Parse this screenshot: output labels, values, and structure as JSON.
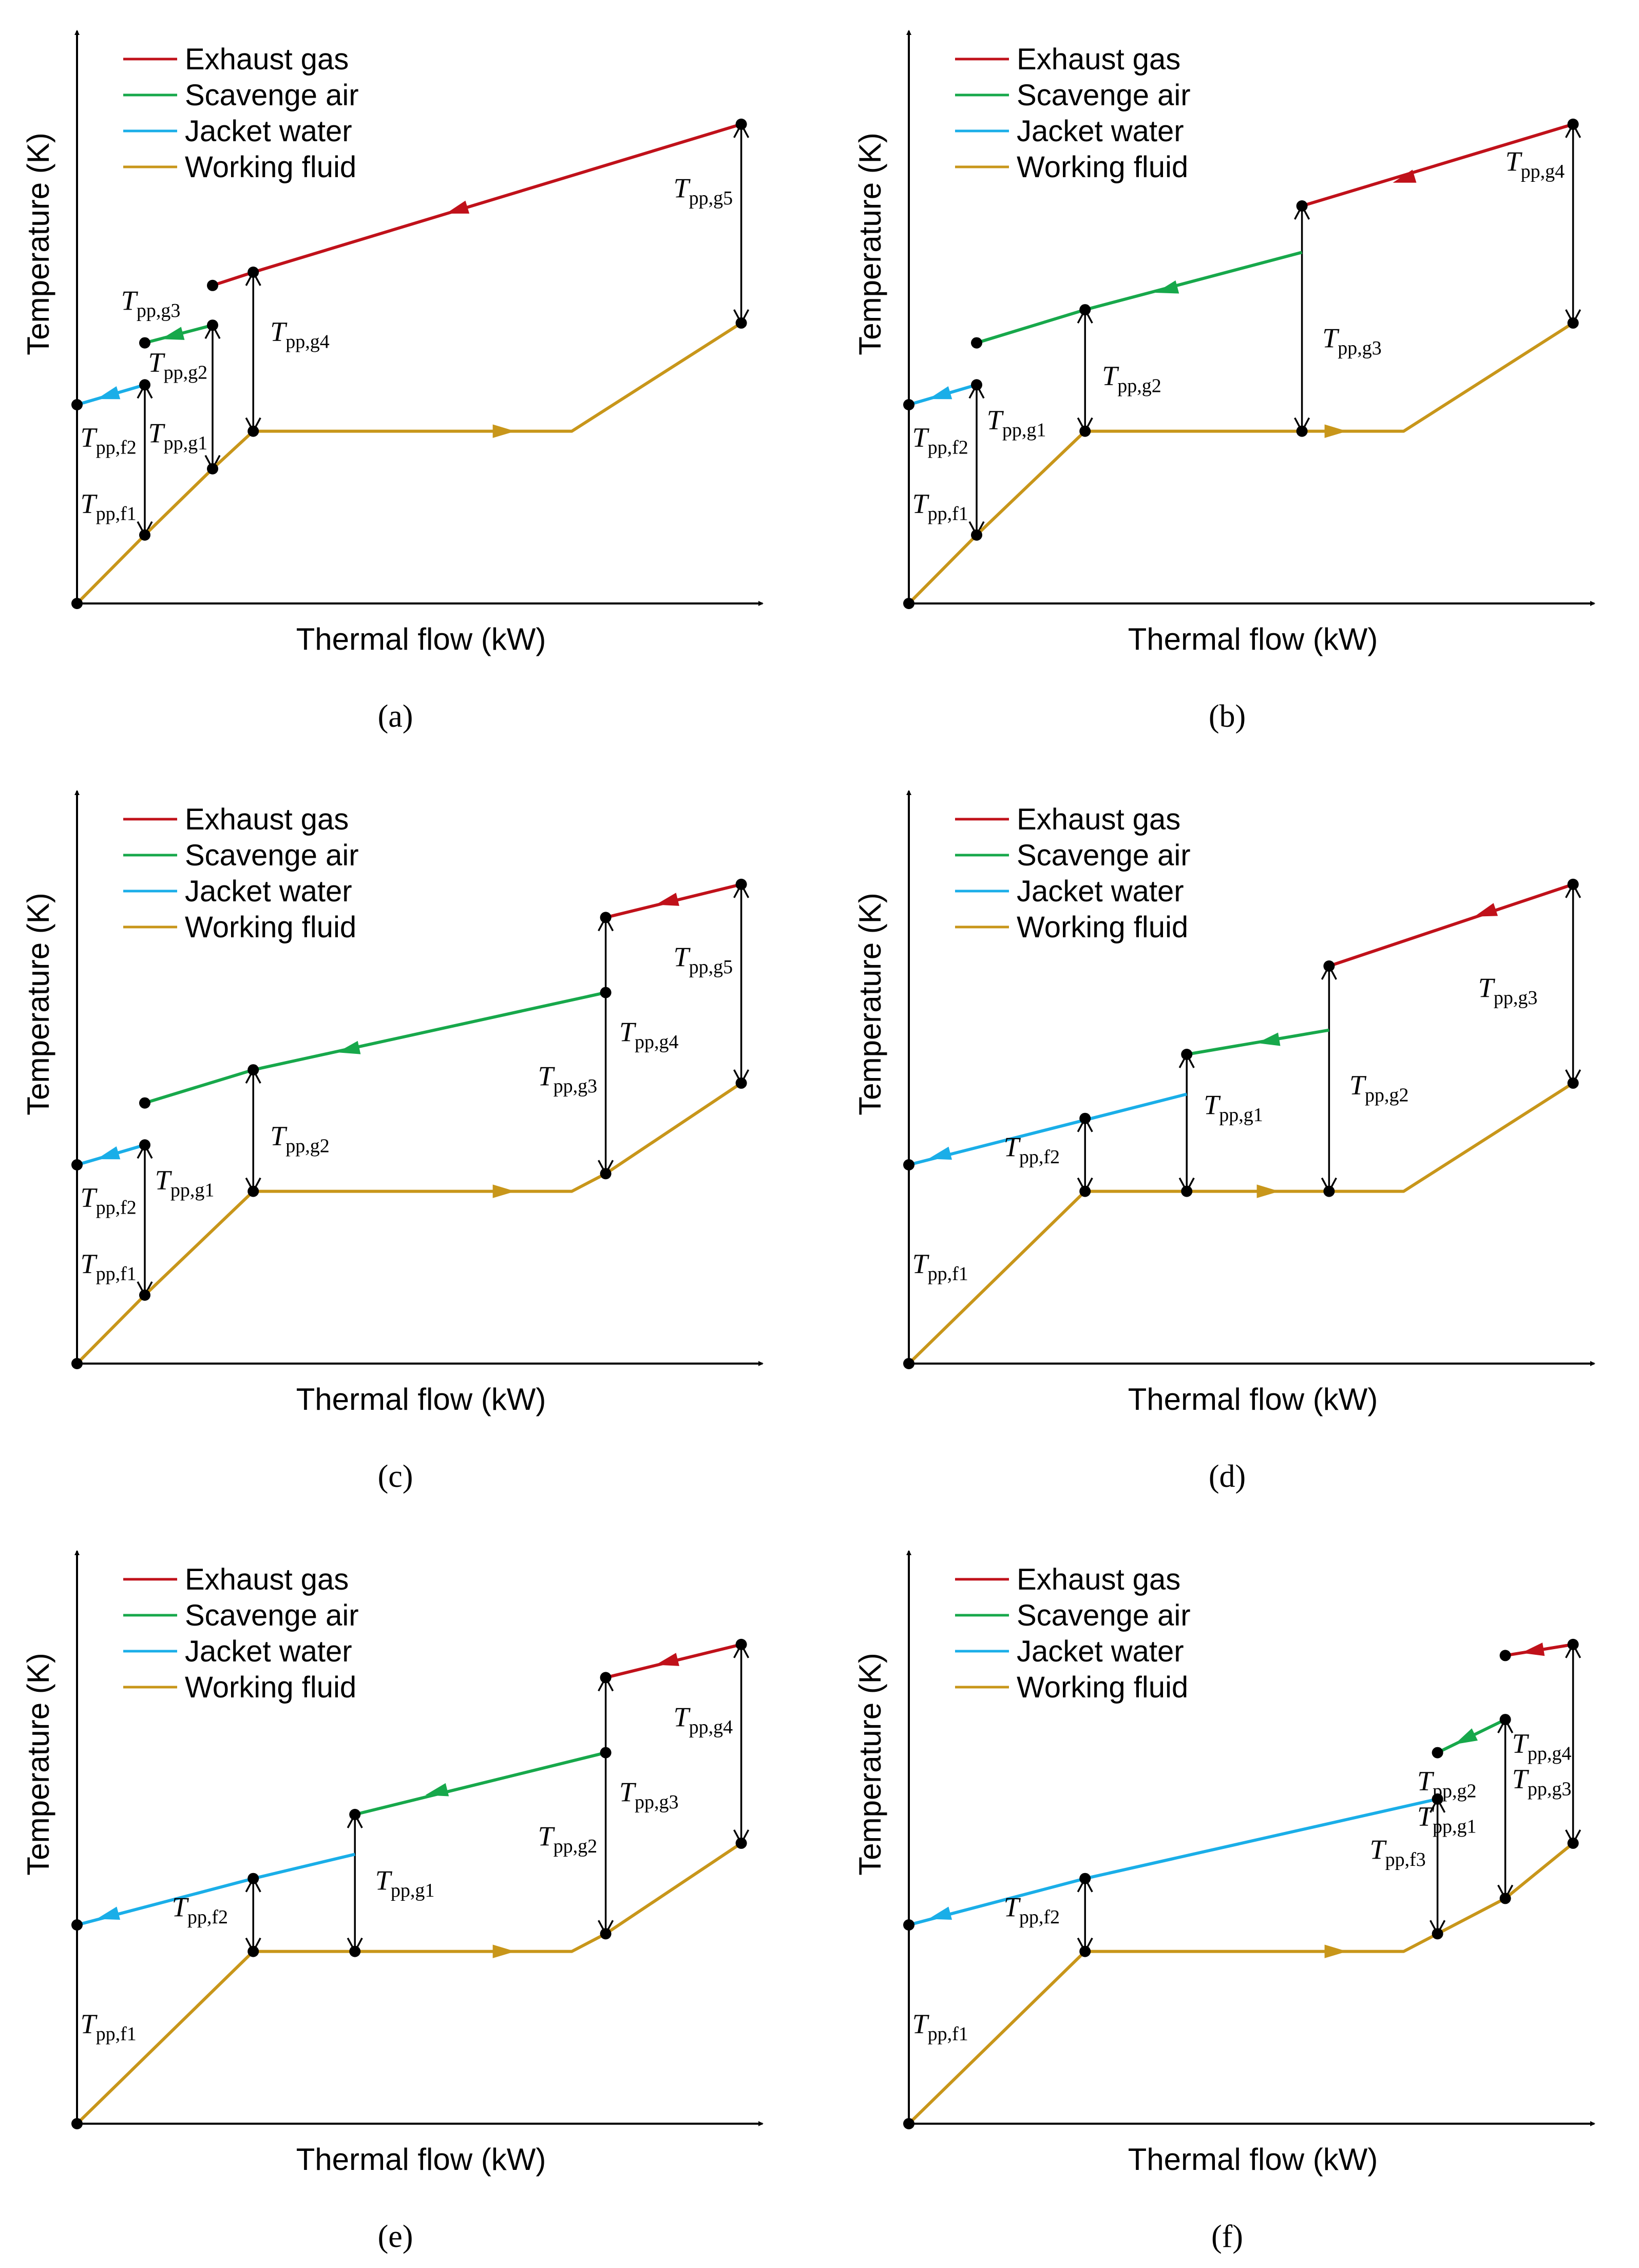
{
  "colors": {
    "exhaust": "#c0111a",
    "scavenge": "#17a84b",
    "jacket": "#1aaee8",
    "working": "#c8961a",
    "axis": "#000000"
  },
  "legend": [
    "Exhaust gas",
    "Scavenge air",
    "Jacket water",
    "Working fluid"
  ],
  "axes": {
    "x_label": "Thermal flow (kW)",
    "y_label": "Temperature (K)"
  },
  "panels": [
    {
      "caption": "(a)",
      "working": [
        [
          0.0,
          0.0
        ],
        [
          1.0,
          1.55
        ],
        [
          2.0,
          3.05
        ],
        [
          2.6,
          3.9
        ],
        [
          7.3,
          3.9
        ],
        [
          9.8,
          6.35
        ]
      ],
      "working_arrows": [
        [
          6.3,
          3.9,
          1
        ]
      ],
      "hot": [
        {
          "stream": "jacket",
          "pts": [
            [
              0.0,
              4.5
            ],
            [
              1.0,
              4.95
            ]
          ],
          "arrow": [
            0.45,
            4.7,
            -1
          ]
        },
        {
          "stream": "scavenge",
          "pts": [
            [
              1.0,
              5.9
            ],
            [
              2.0,
              6.3
            ]
          ],
          "arrow": [
            1.4,
            6.05,
            -1
          ]
        },
        {
          "stream": "exhaust",
          "pts": [
            [
              2.0,
              7.2
            ],
            [
              2.6,
              7.5
            ],
            [
              9.8,
              10.85
            ]
          ],
          "arrow": [
            5.6,
            8.9,
            -1
          ]
        }
      ],
      "dots": [
        [
          0,
          0
        ],
        [
          1,
          1.55
        ],
        [
          2,
          3.05
        ],
        [
          2.6,
          3.9
        ],
        [
          9.8,
          6.35
        ],
        [
          0,
          4.5
        ],
        [
          1,
          4.95
        ],
        [
          1,
          5.9
        ],
        [
          2,
          6.3
        ],
        [
          2,
          7.2
        ],
        [
          2.6,
          7.5
        ],
        [
          9.8,
          10.85
        ]
      ],
      "vlines": [
        [
          1.0,
          1.55,
          4.95
        ],
        [
          2.0,
          3.05,
          6.3
        ],
        [
          2.6,
          3.9,
          7.5
        ],
        [
          9.8,
          6.35,
          10.85
        ]
      ],
      "labels": [
        {
          "t": "T",
          "s": "pp,g5",
          "x": 8.8,
          "y": 9.2
        },
        {
          "t": "T",
          "s": "pp,g3",
          "x": 0.65,
          "y": 6.65
        },
        {
          "t": "T",
          "s": "pp,g2",
          "x": 1.05,
          "y": 5.25
        },
        {
          "t": "T",
          "s": "pp,g4",
          "x": 2.85,
          "y": 5.95
        },
        {
          "t": "T",
          "s": "pp,f2",
          "x": 0.05,
          "y": 3.55
        },
        {
          "t": "T",
          "s": "pp,g1",
          "x": 1.05,
          "y": 3.65
        },
        {
          "t": "T",
          "s": "pp,f1",
          "x": 0.05,
          "y": 2.05
        }
      ]
    },
    {
      "caption": "(b)",
      "working": [
        [
          0.0,
          0.0
        ],
        [
          1.0,
          1.55
        ],
        [
          2.6,
          3.9
        ],
        [
          7.3,
          3.9
        ],
        [
          9.8,
          6.35
        ]
      ],
      "working_arrows": [
        [
          6.3,
          3.9,
          1
        ]
      ],
      "hot": [
        {
          "stream": "jacket",
          "pts": [
            [
              0.0,
              4.5
            ],
            [
              1.0,
              4.95
            ]
          ],
          "arrow": [
            0.45,
            4.7,
            -1
          ]
        },
        {
          "stream": "scavenge",
          "pts": [
            [
              1.0,
              5.9
            ],
            [
              2.6,
              6.65
            ],
            [
              5.8,
              7.95
            ]
          ],
          "arrow": [
            3.8,
            7.1,
            -1
          ]
        },
        {
          "stream": "exhaust",
          "pts": [
            [
              5.8,
              9.0
            ],
            [
              9.8,
              10.85
            ]
          ],
          "arrow": [
            7.3,
            9.6,
            -1
          ]
        }
      ],
      "dots": [
        [
          0,
          0
        ],
        [
          1,
          1.55
        ],
        [
          2.6,
          3.9
        ],
        [
          5.8,
          3.9
        ],
        [
          9.8,
          6.35
        ],
        [
          0,
          4.5
        ],
        [
          1,
          4.95
        ],
        [
          1,
          5.9
        ],
        [
          2.6,
          6.65
        ],
        [
          5.8,
          9.0
        ],
        [
          9.8,
          10.85
        ]
      ],
      "vlines": [
        [
          1.0,
          1.55,
          4.95
        ],
        [
          2.6,
          3.9,
          6.65
        ],
        [
          5.8,
          3.9,
          9.0
        ],
        [
          9.8,
          6.35,
          10.85
        ]
      ],
      "labels": [
        {
          "t": "T",
          "s": "pp,g4",
          "x": 8.8,
          "y": 9.8
        },
        {
          "t": "T",
          "s": "pp,g3",
          "x": 6.1,
          "y": 5.8
        },
        {
          "t": "T",
          "s": "pp,g2",
          "x": 2.85,
          "y": 4.95
        },
        {
          "t": "T",
          "s": "pp,f2",
          "x": 0.05,
          "y": 3.55
        },
        {
          "t": "T",
          "s": "pp,g1",
          "x": 1.15,
          "y": 3.95
        },
        {
          "t": "T",
          "s": "pp,f1",
          "x": 0.05,
          "y": 2.05
        }
      ]
    },
    {
      "caption": "(c)",
      "working": [
        [
          0.0,
          0.0
        ],
        [
          1.0,
          1.55
        ],
        [
          2.6,
          3.9
        ],
        [
          7.3,
          3.9
        ],
        [
          7.8,
          4.3
        ],
        [
          9.8,
          6.35
        ]
      ],
      "working_arrows": [
        [
          6.3,
          3.9,
          1
        ]
      ],
      "hot": [
        {
          "stream": "jacket",
          "pts": [
            [
              0.0,
              4.5
            ],
            [
              1.0,
              4.95
            ]
          ],
          "arrow": [
            0.45,
            4.7,
            -1
          ]
        },
        {
          "stream": "scavenge",
          "pts": [
            [
              1.0,
              5.9
            ],
            [
              2.6,
              6.65
            ],
            [
              7.8,
              8.4
            ]
          ],
          "arrow": [
            4.0,
            7.1,
            -1
          ]
        },
        {
          "stream": "exhaust",
          "pts": [
            [
              7.8,
              10.1
            ],
            [
              9.8,
              10.85
            ]
          ],
          "arrow": [
            8.7,
            10.45,
            -1
          ]
        }
      ],
      "dots": [
        [
          0,
          0
        ],
        [
          1,
          1.55
        ],
        [
          2.6,
          3.9
        ],
        [
          7.8,
          4.3
        ],
        [
          9.8,
          6.35
        ],
        [
          0,
          4.5
        ],
        [
          1,
          4.95
        ],
        [
          1,
          5.9
        ],
        [
          2.6,
          6.65
        ],
        [
          7.8,
          8.4
        ],
        [
          7.8,
          10.1
        ],
        [
          9.8,
          10.85
        ]
      ],
      "vlines": [
        [
          1.0,
          1.55,
          4.95
        ],
        [
          2.6,
          3.9,
          6.65
        ],
        [
          7.8,
          4.3,
          10.1
        ],
        [
          9.8,
          6.35,
          10.85
        ]
      ],
      "labels": [
        {
          "t": "T",
          "s": "pp,g5",
          "x": 8.8,
          "y": 9.0
        },
        {
          "t": "T",
          "s": "pp,g4",
          "x": 8.0,
          "y": 7.3
        },
        {
          "t": "T",
          "s": "pp,g3",
          "x": 6.8,
          "y": 6.3
        },
        {
          "t": "T",
          "s": "pp,g2",
          "x": 2.85,
          "y": 4.95
        },
        {
          "t": "T",
          "s": "pp,f2",
          "x": 0.05,
          "y": 3.55
        },
        {
          "t": "T",
          "s": "pp,g1",
          "x": 1.15,
          "y": 3.95
        },
        {
          "t": "T",
          "s": "pp,f1",
          "x": 0.05,
          "y": 2.05
        }
      ]
    },
    {
      "caption": "(d)",
      "working": [
        [
          0.0,
          0.0
        ],
        [
          2.6,
          3.9
        ],
        [
          7.3,
          3.9
        ],
        [
          9.8,
          6.35
        ]
      ],
      "working_arrows": [
        [
          5.3,
          3.9,
          1
        ]
      ],
      "hot": [
        {
          "stream": "jacket",
          "pts": [
            [
              0.0,
              4.5
            ],
            [
              4.1,
              6.1
            ]
          ],
          "arrow": [
            0.45,
            4.7,
            -1
          ]
        },
        {
          "stream": "scavenge",
          "pts": [
            [
              4.1,
              7.0
            ],
            [
              6.2,
              7.55
            ]
          ],
          "arrow": [
            5.3,
            7.3,
            -1
          ]
        },
        {
          "stream": "exhaust",
          "pts": [
            [
              6.2,
              9.0
            ],
            [
              9.8,
              10.85
            ]
          ],
          "arrow": [
            8.5,
            10.2,
            -1
          ]
        }
      ],
      "dots": [
        [
          0,
          0
        ],
        [
          2.6,
          3.9
        ],
        [
          4.1,
          3.9
        ],
        [
          6.2,
          3.9
        ],
        [
          9.8,
          6.35
        ],
        [
          0,
          4.5
        ],
        [
          2.6,
          5.55
        ],
        [
          4.1,
          7.0
        ],
        [
          6.2,
          9.0
        ],
        [
          9.8,
          10.85
        ]
      ],
      "vlines": [
        [
          2.6,
          3.9,
          5.55
        ],
        [
          4.1,
          3.9,
          7.0
        ],
        [
          6.2,
          3.9,
          9.0
        ],
        [
          9.8,
          6.35,
          10.85
        ]
      ],
      "labels": [
        {
          "t": "T",
          "s": "pp,g3",
          "x": 8.4,
          "y": 8.3
        },
        {
          "t": "T",
          "s": "pp,g2",
          "x": 6.5,
          "y": 6.1
        },
        {
          "t": "T",
          "s": "pp,g1",
          "x": 4.35,
          "y": 5.65
        },
        {
          "t": "T",
          "s": "pp,f2",
          "x": 1.4,
          "y": 4.7
        },
        {
          "t": "T",
          "s": "pp,f1",
          "x": 0.05,
          "y": 2.05
        }
      ]
    },
    {
      "caption": "(e)",
      "working": [
        [
          0.0,
          0.0
        ],
        [
          2.6,
          3.9
        ],
        [
          7.3,
          3.9
        ],
        [
          7.8,
          4.3
        ],
        [
          9.8,
          6.35
        ]
      ],
      "working_arrows": [
        [
          6.3,
          3.9,
          1
        ]
      ],
      "hot": [
        {
          "stream": "jacket",
          "pts": [
            [
              0.0,
              4.5
            ],
            [
              2.6,
              5.55
            ],
            [
              4.1,
              6.1
            ]
          ],
          "arrow": [
            0.45,
            4.7,
            -1
          ]
        },
        {
          "stream": "scavenge",
          "pts": [
            [
              4.1,
              7.0
            ],
            [
              7.8,
              8.4
            ]
          ],
          "arrow": [
            5.3,
            7.5,
            -1
          ]
        },
        {
          "stream": "exhaust",
          "pts": [
            [
              7.8,
              10.1
            ],
            [
              9.8,
              10.85
            ]
          ],
          "arrow": [
            8.7,
            10.45,
            -1
          ]
        }
      ],
      "dots": [
        [
          0,
          0
        ],
        [
          2.6,
          3.9
        ],
        [
          4.1,
          3.9
        ],
        [
          7.8,
          4.3
        ],
        [
          9.8,
          6.35
        ],
        [
          0,
          4.5
        ],
        [
          2.6,
          5.55
        ],
        [
          4.1,
          7.0
        ],
        [
          7.8,
          8.4
        ],
        [
          7.8,
          10.1
        ],
        [
          9.8,
          10.85
        ]
      ],
      "vlines": [
        [
          2.6,
          3.9,
          5.55
        ],
        [
          4.1,
          3.9,
          7.0
        ],
        [
          7.8,
          4.3,
          10.1
        ],
        [
          9.8,
          6.35,
          10.85
        ]
      ],
      "labels": [
        {
          "t": "T",
          "s": "pp,g4",
          "x": 8.8,
          "y": 9.0
        },
        {
          "t": "T",
          "s": "pp,g3",
          "x": 8.0,
          "y": 7.3
        },
        {
          "t": "T",
          "s": "pp,g2",
          "x": 6.8,
          "y": 6.3
        },
        {
          "t": "T",
          "s": "pp,g1",
          "x": 4.4,
          "y": 5.3
        },
        {
          "t": "T",
          "s": "pp,f2",
          "x": 1.4,
          "y": 4.7
        },
        {
          "t": "T",
          "s": "pp,f1",
          "x": 0.05,
          "y": 2.05
        }
      ]
    },
    {
      "caption": "(f)",
      "working": [
        [
          0.0,
          0.0
        ],
        [
          2.6,
          3.9
        ],
        [
          7.3,
          3.9
        ],
        [
          7.8,
          4.3
        ],
        [
          8.8,
          5.1
        ],
        [
          9.8,
          6.35
        ]
      ],
      "working_arrows": [
        [
          6.3,
          3.9,
          1
        ]
      ],
      "hot": [
        {
          "stream": "jacket",
          "pts": [
            [
              0.0,
              4.5
            ],
            [
              2.6,
              5.55
            ],
            [
              7.8,
              7.35
            ]
          ],
          "arrow": [
            0.45,
            4.7,
            -1
          ]
        },
        {
          "stream": "scavenge",
          "pts": [
            [
              7.8,
              8.4
            ],
            [
              8.8,
              9.15
            ]
          ],
          "arrow": [
            8.2,
            8.7,
            -1
          ]
        },
        {
          "stream": "exhaust",
          "pts": [
            [
              8.8,
              10.6
            ],
            [
              9.8,
              10.85
            ]
          ],
          "arrow": [
            9.2,
            10.7,
            -1
          ]
        }
      ],
      "dots": [
        [
          0,
          0
        ],
        [
          2.6,
          3.9
        ],
        [
          7.8,
          4.3
        ],
        [
          8.8,
          5.1
        ],
        [
          9.8,
          6.35
        ],
        [
          0,
          4.5
        ],
        [
          2.6,
          5.55
        ],
        [
          7.8,
          7.35
        ],
        [
          7.8,
          8.4
        ],
        [
          8.8,
          9.15
        ],
        [
          8.8,
          10.6
        ],
        [
          9.8,
          10.85
        ]
      ],
      "vlines": [
        [
          2.6,
          3.9,
          5.55
        ],
        [
          7.8,
          4.3,
          7.35
        ],
        [
          8.8,
          5.1,
          9.15
        ],
        [
          9.8,
          6.35,
          10.85
        ]
      ],
      "labels": [
        {
          "t": "T",
          "s": "pp,g4",
          "x": 8.9,
          "y": 8.4
        },
        {
          "t": "T",
          "s": "pp,g3",
          "x": 8.9,
          "y": 7.6
        },
        {
          "t": "T",
          "s": "pp,g2",
          "x": 7.5,
          "y": 7.55
        },
        {
          "t": "T",
          "s": "pp,g1",
          "x": 7.5,
          "y": 6.75
        },
        {
          "t": "T",
          "s": "pp,f3",
          "x": 6.8,
          "y": 6.0
        },
        {
          "t": "T",
          "s": "pp,f2",
          "x": 1.4,
          "y": 4.7
        },
        {
          "t": "T",
          "s": "pp,f1",
          "x": 0.05,
          "y": 2.05
        }
      ]
    }
  ]
}
